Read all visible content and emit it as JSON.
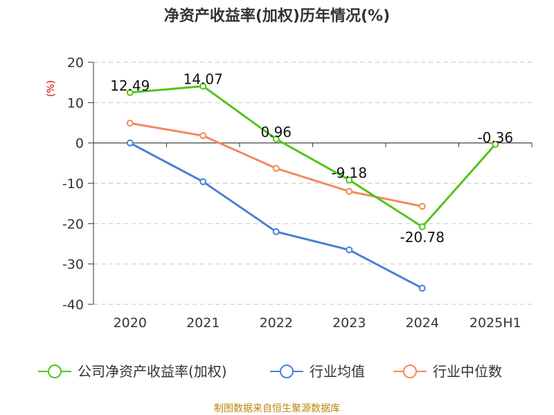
{
  "chart_data": {
    "type": "line",
    "title": "净资产收益率(加权)历年情况(%)",
    "ylabel": "(%)",
    "xlabel": "",
    "categories": [
      "2020",
      "2021",
      "2022",
      "2023",
      "2024",
      "2025H1"
    ],
    "ylim": [
      -40,
      20
    ],
    "yticks": [
      "20",
      "10",
      "0",
      "-10",
      "-20",
      "-30",
      "-40"
    ],
    "grid": true,
    "legend_position": "bottom",
    "series": [
      {
        "name": "公司净资产收益率(加权)",
        "color": "#52c41a",
        "values": [
          12.49,
          14.07,
          0.96,
          -9.18,
          -20.78,
          -0.36
        ],
        "labels": [
          "12.49",
          "14.07",
          "0.96",
          "-9.18",
          "-20.78",
          "-0.36"
        ]
      },
      {
        "name": "行业均值",
        "color": "#4a7fd4",
        "values": [
          0,
          -9.6,
          -22,
          -26.5,
          -36,
          null
        ]
      },
      {
        "name": "行业中位数",
        "color": "#f4895a",
        "values": [
          4.9,
          1.8,
          -6.3,
          -12,
          -15.7,
          null
        ]
      }
    ]
  },
  "footer": {
    "source": "制图数据来自恒生聚源数据库"
  }
}
